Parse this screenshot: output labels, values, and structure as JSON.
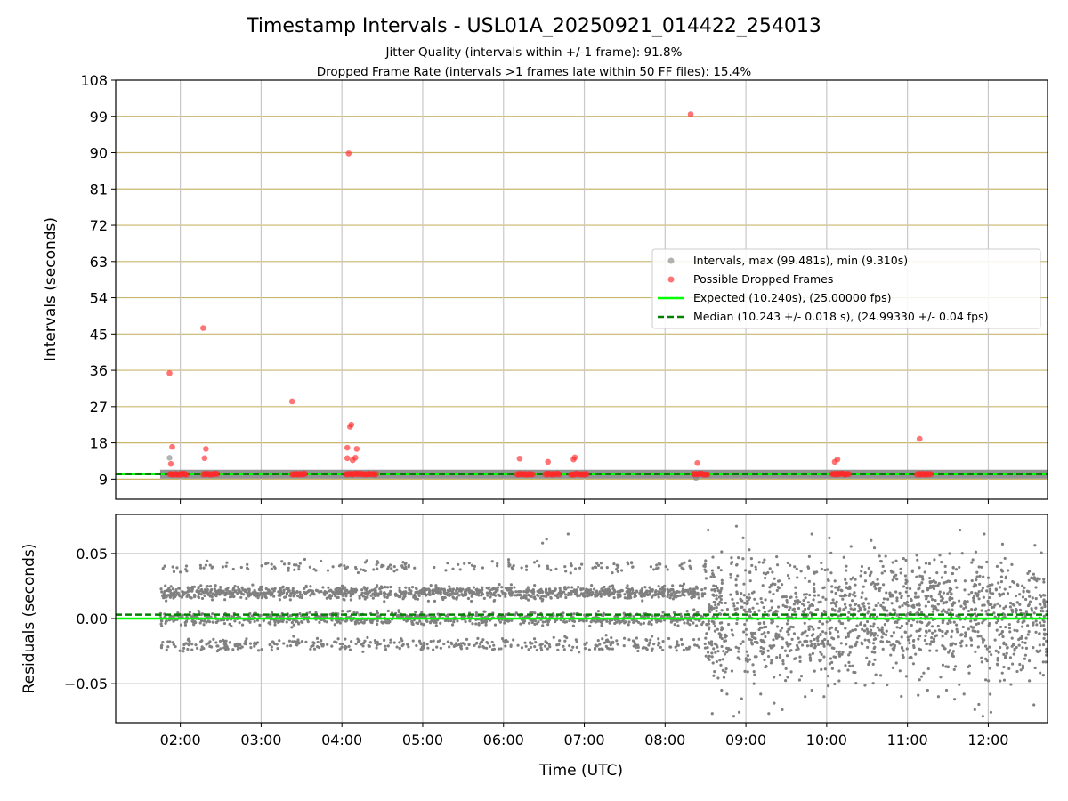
{
  "chart_data": [
    {
      "type": "scatter",
      "title": "Timestamp Intervals - USL01A_20250921_014422_254013",
      "subtitles": [
        "Jitter Quality (intervals within +/-1 frame): 91.8%",
        "Dropped Frame Rate (intervals >1 frames late within 50 FF files): 15.4%"
      ],
      "ylabel": "Intervals (seconds)",
      "xlabel": "",
      "xlim": [
        "01:12",
        "12:44"
      ],
      "ylim": [
        4,
        108
      ],
      "yticks": [
        9,
        18,
        27,
        36,
        45,
        54,
        63,
        72,
        81,
        90,
        99,
        108
      ],
      "xticks": [
        "02:00",
        "03:00",
        "04:00",
        "05:00",
        "06:00",
        "07:00",
        "08:00",
        "09:00",
        "10:00",
        "11:00",
        "12:00"
      ],
      "grid": true,
      "legend_position": "center-right",
      "series": [
        {
          "name": "Intervals, max (99.481s), min (9.310s)",
          "marker": "point",
          "color": "#808080",
          "points": [
            [
              "01:52",
              14.3
            ],
            [
              "08:23",
              9.31
            ],
            [
              "01:45",
              10.24
            ],
            [
              "12:44",
              10.24
            ]
          ]
        },
        {
          "name": "Possible Dropped Frames",
          "marker": "point",
          "color": "#ff2a2a",
          "points": [
            [
              "01:52",
              35.3
            ],
            [
              "01:54",
              17.0
            ],
            [
              "01:53",
              12.8
            ],
            [
              "02:17",
              46.5
            ],
            [
              "02:19",
              16.5
            ],
            [
              "02:18",
              14.2
            ],
            [
              "03:23",
              28.3
            ],
            [
              "04:05",
              89.8
            ],
            [
              "04:06",
              22.0
            ],
            [
              "04:07",
              22.5
            ],
            [
              "04:04",
              16.8
            ],
            [
              "04:11",
              16.5
            ],
            [
              "04:04",
              14.2
            ],
            [
              "04:08",
              13.7
            ],
            [
              "04:10",
              14.3
            ],
            [
              "06:12",
              14.1
            ],
            [
              "06:33",
              13.3
            ],
            [
              "06:52",
              13.9
            ],
            [
              "06:53",
              14.4
            ],
            [
              "08:19",
              99.5
            ],
            [
              "08:24",
              13.0
            ],
            [
              "10:06",
              13.3
            ],
            [
              "10:08",
              13.9
            ],
            [
              "11:09",
              19.0
            ]
          ],
          "clusters": [
            [
              "01:52",
              "02:05"
            ],
            [
              "02:17",
              "02:28"
            ],
            [
              "03:23",
              "03:33"
            ],
            [
              "04:03",
              "04:26"
            ],
            [
              "06:10",
              "06:22"
            ],
            [
              "06:31",
              "06:42"
            ],
            [
              "06:50",
              "07:02"
            ],
            [
              "08:21",
              "08:32"
            ],
            [
              "10:04",
              "10:17"
            ],
            [
              "11:07",
              "11:18"
            ]
          ],
          "cluster_value": 10.24
        },
        {
          "name": "Expected (10.240s), (25.00000 fps)",
          "type": "hline",
          "value": 10.24,
          "color": "#00ff00"
        },
        {
          "name": "Median (10.243 +/- 0.018 s), (24.99330 +/- 0.04 fps)",
          "type": "hline",
          "value": 10.243,
          "color": "#008000",
          "style": "dashed"
        }
      ]
    },
    {
      "type": "scatter",
      "title": "",
      "ylabel": "Residuals (seconds)",
      "xlabel": "Time (UTC)",
      "xlim": [
        "01:12",
        "12:44"
      ],
      "ylim": [
        -0.08,
        0.08
      ],
      "yticks": [
        0.05,
        0.0,
        -0.05
      ],
      "ytick_labels": [
        "0.05",
        "0.00",
        "−0.05"
      ],
      "xticks": [
        "02:00",
        "03:00",
        "04:00",
        "05:00",
        "06:00",
        "07:00",
        "08:00",
        "09:00",
        "10:00",
        "11:00",
        "12:00"
      ],
      "grid": true,
      "series": [
        {
          "type": "scatter",
          "color": "#808080",
          "x_range": [
            "01:45",
            "12:44"
          ],
          "bands": [
            {
              "from": "01:45",
              "to": "08:30",
              "levels": [
                0.02,
                0.0,
                -0.02,
                0.04
              ],
              "weights": [
                0.45,
                0.33,
                0.15,
                0.07
              ],
              "spread": 0.0025
            },
            {
              "from": "08:30",
              "to": "12:44",
              "levels": [
                0.01,
                -0.01,
                0.03,
                -0.03
              ],
              "weights": [
                0.35,
                0.35,
                0.15,
                0.15
              ],
              "spread": 0.012
            }
          ],
          "outliers": [
            [
              "06:29",
              0.058
            ],
            [
              "06:32",
              0.061
            ],
            [
              "06:48",
              0.065
            ],
            [
              "08:32",
              0.068
            ],
            [
              "08:53",
              0.071
            ],
            [
              "08:58",
              0.062
            ],
            [
              "09:49",
              0.065
            ],
            [
              "10:02",
              0.062
            ],
            [
              "10:33",
              0.06
            ],
            [
              "11:39",
              0.068
            ],
            [
              "11:57",
              0.065
            ],
            [
              "08:35",
              -0.073
            ],
            [
              "08:42",
              -0.055
            ],
            [
              "08:46",
              -0.058
            ],
            [
              "08:51",
              -0.075
            ],
            [
              "08:55",
              -0.072
            ],
            [
              "09:06",
              -0.05
            ],
            [
              "09:11",
              -0.058
            ],
            [
              "09:17",
              -0.073
            ],
            [
              "09:21",
              -0.065
            ],
            [
              "09:27",
              -0.07
            ],
            [
              "09:44",
              -0.06
            ],
            [
              "09:49",
              -0.055
            ],
            [
              "09:58",
              -0.06
            ],
            [
              "11:09",
              -0.047
            ],
            [
              "11:15",
              -0.055
            ],
            [
              "11:23",
              -0.06
            ],
            [
              "11:29",
              -0.055
            ],
            [
              "11:35",
              -0.062
            ],
            [
              "11:42",
              -0.058
            ],
            [
              "11:50",
              -0.07
            ],
            [
              "11:56",
              -0.075
            ],
            [
              "12:02",
              -0.072
            ],
            [
              "11:53",
              -0.066
            ]
          ]
        },
        {
          "type": "hline",
          "value": 0.0,
          "color": "#00ff00"
        },
        {
          "type": "hline",
          "value": 0.003,
          "color": "#008000",
          "style": "dashed"
        }
      ]
    }
  ]
}
